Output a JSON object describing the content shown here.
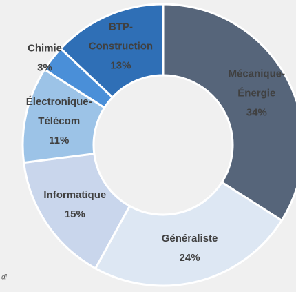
{
  "chart_data": {
    "type": "donut",
    "categories": [
      "Mécanique-Énergie",
      "Généraliste",
      "Informatique",
      "Électronique-Télécom",
      "Chimie",
      "BTP-Construction"
    ],
    "values": [
      34,
      24,
      15,
      11,
      3,
      13
    ],
    "value_labels": [
      "34%",
      "24%",
      "15%",
      "11%",
      "3%",
      "13%"
    ],
    "colors": [
      "#56657a",
      "#dde7f3",
      "#c9d6ec",
      "#9cc3e7",
      "#4a8fd8",
      "#2f6fb6"
    ],
    "note": "di"
  }
}
